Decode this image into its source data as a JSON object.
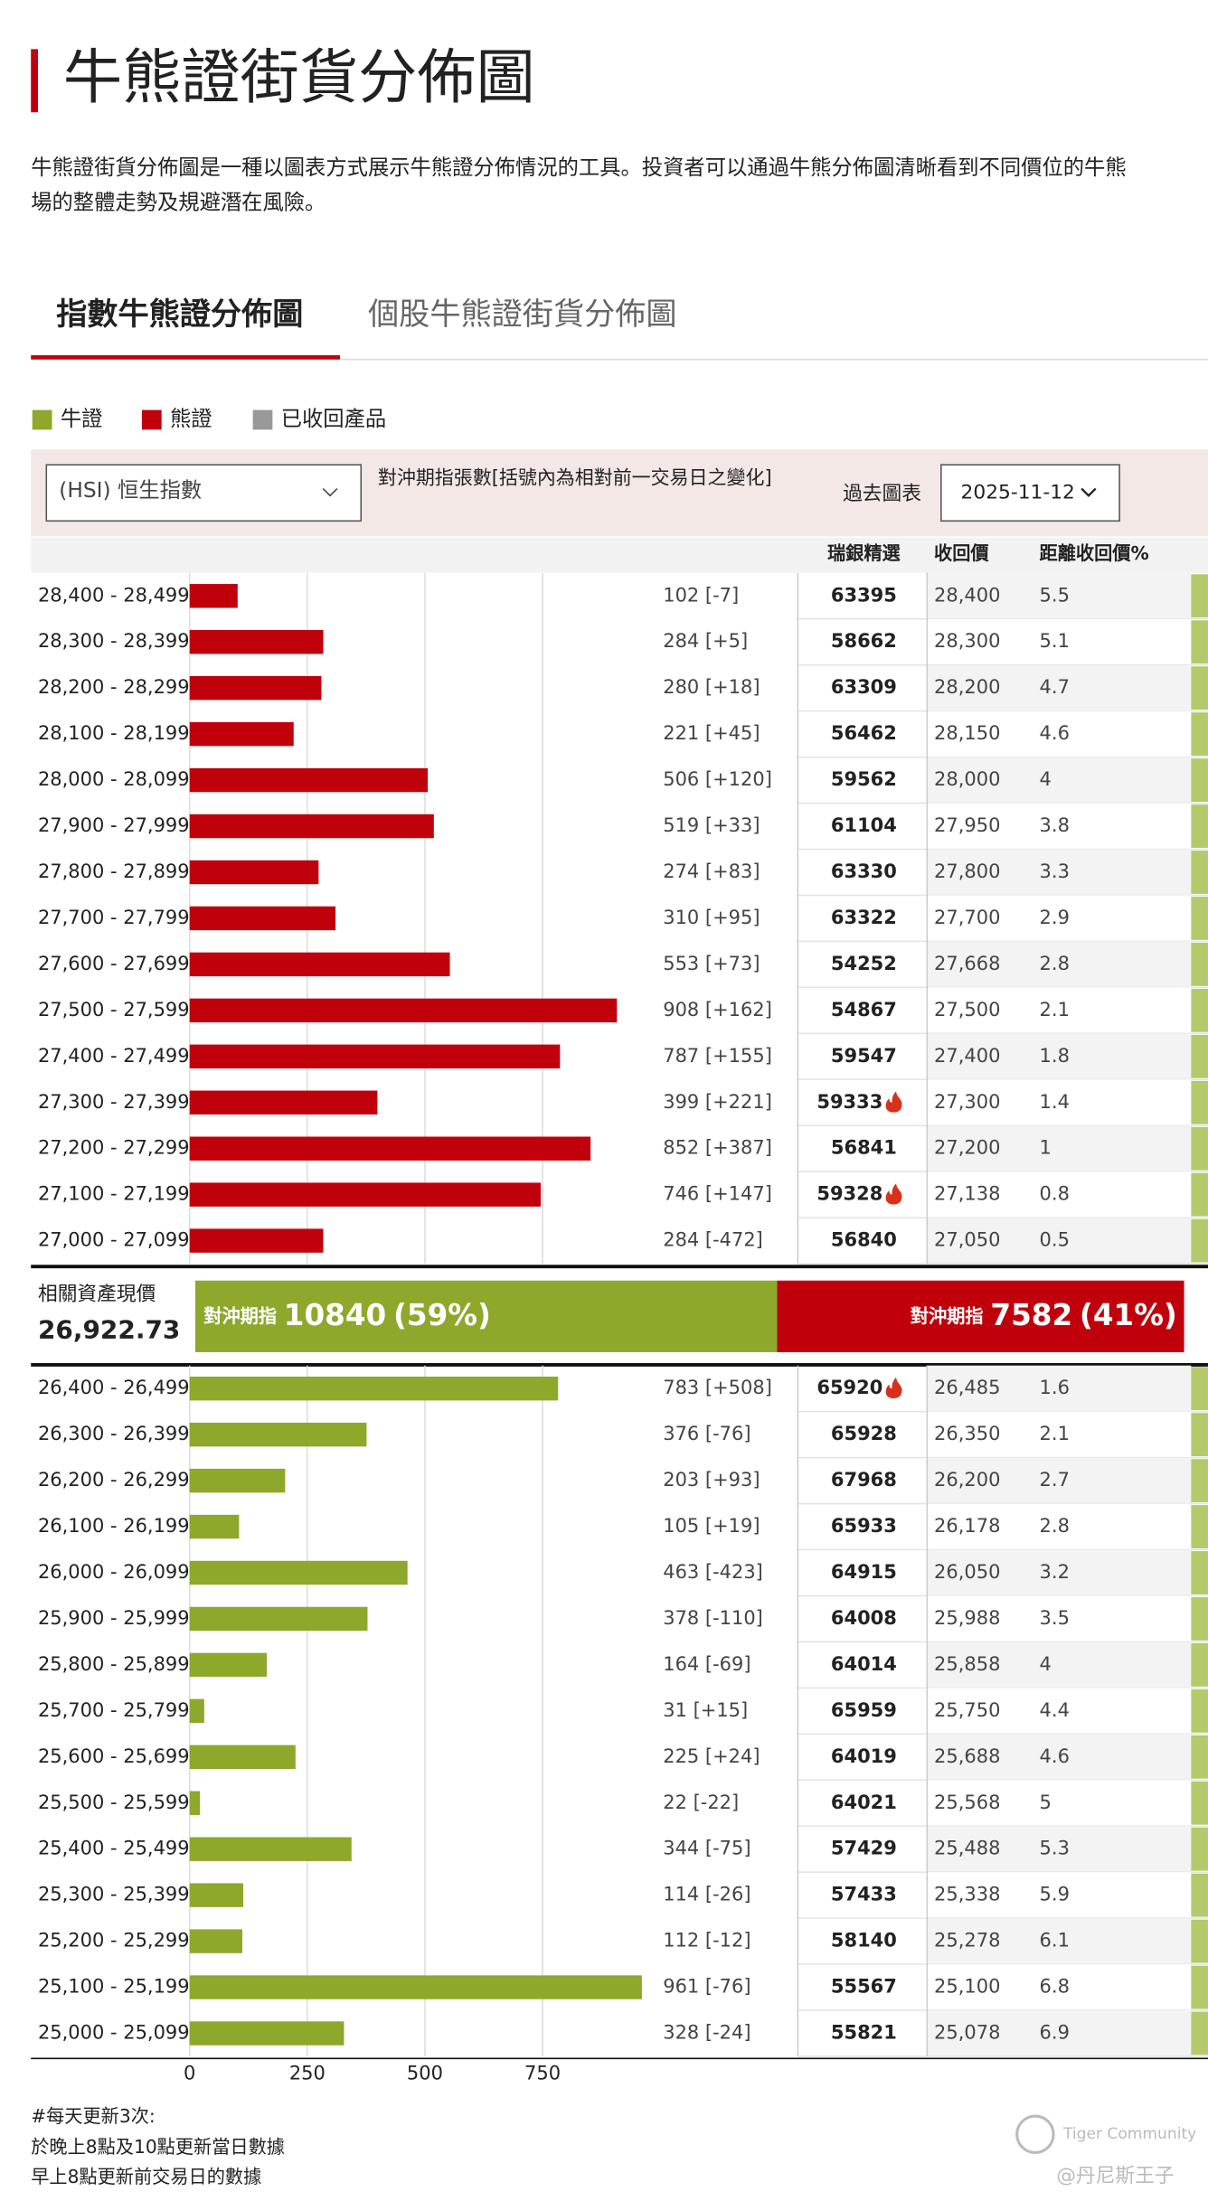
{
  "header": {
    "title": "牛熊證街貨分佈圖",
    "description": [
      "牛熊證街貨分佈圖是一種以圖表方式展示牛熊證分佈情況的工具。投資者可以通過牛熊分佈圖清晰看到不同價位的牛熊",
      "場的整體走勢及規避潛在風險。"
    ]
  },
  "tabs": [
    "指數牛熊證分佈圖",
    "個股牛熊證街貨分佈圖"
  ],
  "legend": [
    {
      "name": "牛證",
      "color": "#8da82b"
    },
    {
      "name": "熊證",
      "color": "#c0000b"
    },
    {
      "name": "已收回產品",
      "color": "#999999"
    }
  ],
  "controls": {
    "index_select": "(HSI) 恒生指數",
    "note": "對沖期指張數[括號內為相對前一交易日之變化]",
    "history_label": "過去圖表",
    "date": "2025-11-12"
  },
  "columns": [
    "瑞銀精選",
    "收回價",
    "距離收回價%"
  ],
  "summary": {
    "spot_label": "相關資產現價",
    "spot": "26,922.73",
    "hedge_label": "對沖期指",
    "bull_count": 10840,
    "bull_pct_label": "(59%)",
    "bear_count": 7582,
    "bear_pct_label": "(41%)"
  },
  "chart_data": [
    {
      "type": "bar",
      "name": "熊證",
      "color": "#c0000b",
      "xlim": [
        0,
        985
      ],
      "categories": [
        "28,400 - 28,499",
        "28,300 - 28,399",
        "28,200 - 28,299",
        "28,100 - 28,199",
        "28,000 - 28,099",
        "27,900 - 27,999",
        "27,800 - 27,899",
        "27,700 - 27,799",
        "27,600 - 27,699",
        "27,500 - 27,599",
        "27,400 - 27,499",
        "27,300 - 27,399",
        "27,200 - 27,299",
        "27,100 - 27,199",
        "27,000 - 27,099"
      ],
      "values": [
        102,
        284,
        280,
        221,
        506,
        519,
        274,
        310,
        553,
        908,
        787,
        399,
        852,
        746,
        284
      ],
      "value_labels": [
        "102 [-7]",
        "284 [+5]",
        "280 [+18]",
        "221 [+45]",
        "506 [+120]",
        "519 [+33]",
        "274 [+83]",
        "310 [+95]",
        "553 [+73]",
        "908 [+162]",
        "787 [+155]",
        "399 [+221]",
        "852 [+387]",
        "746 [+147]",
        "284 [-472]"
      ],
      "picks": [
        63395,
        58662,
        63309,
        56462,
        59562,
        61104,
        63330,
        63322,
        54252,
        54867,
        59547,
        59333,
        56841,
        59328,
        56840
      ],
      "hot": [
        false,
        false,
        false,
        false,
        false,
        false,
        false,
        false,
        false,
        false,
        false,
        true,
        false,
        true,
        false
      ],
      "call_prices": [
        "28,400",
        "28,300",
        "28,200",
        "28,150",
        "28,000",
        "27,950",
        "27,800",
        "27,700",
        "27,668",
        "27,500",
        "27,400",
        "27,300",
        "27,200",
        "27,138",
        "27,050"
      ],
      "distances": [
        5.5,
        5.1,
        4.7,
        4.6,
        4,
        3.8,
        3.3,
        2.9,
        2.8,
        2.1,
        1.8,
        1.4,
        1,
        0.8,
        0.5
      ]
    },
    {
      "type": "bar",
      "name": "牛證",
      "color": "#8da82b",
      "xlim": [
        0,
        985
      ],
      "xticks": [
        0,
        250,
        500,
        750
      ],
      "categories": [
        "26,400 - 26,499",
        "26,300 - 26,399",
        "26,200 - 26,299",
        "26,100 - 26,199",
        "26,000 - 26,099",
        "25,900 - 25,999",
        "25,800 - 25,899",
        "25,700 - 25,799",
        "25,600 - 25,699",
        "25,500 - 25,599",
        "25,400 - 25,499",
        "25,300 - 25,399",
        "25,200 - 25,299",
        "25,100 - 25,199",
        "25,000 - 25,099"
      ],
      "values": [
        783,
        376,
        203,
        105,
        463,
        378,
        164,
        31,
        225,
        22,
        344,
        114,
        112,
        961,
        328
      ],
      "value_labels": [
        "783 [+508]",
        "376 [-76]",
        "203 [+93]",
        "105 [+19]",
        "463 [-423]",
        "378 [-110]",
        "164 [-69]",
        "31 [+15]",
        "225 [+24]",
        "22 [-22]",
        "344 [-75]",
        "114 [-26]",
        "112 [-12]",
        "961 [-76]",
        "328 [-24]"
      ],
      "picks": [
        65920,
        65928,
        67968,
        65933,
        64915,
        64008,
        64014,
        65959,
        64019,
        64021,
        57429,
        57433,
        58140,
        55567,
        55821
      ],
      "hot": [
        true,
        false,
        false,
        false,
        false,
        false,
        false,
        false,
        false,
        false,
        false,
        false,
        false,
        false,
        false
      ],
      "call_prices": [
        "26,485",
        "26,350",
        "26,200",
        "26,178",
        "26,050",
        "25,988",
        "25,858",
        "25,750",
        "25,688",
        "25,568",
        "25,488",
        "25,338",
        "25,278",
        "25,100",
        "25,078"
      ],
      "distances": [
        1.6,
        2.1,
        2.7,
        2.8,
        3.2,
        3.5,
        4,
        4.4,
        4.6,
        5,
        5.3,
        5.9,
        6.1,
        6.8,
        6.9
      ]
    }
  ],
  "footer": [
    "#每天更新3次:",
    "於晚上8點及10點更新當日數據",
    "早上8點更新前交易日的數據"
  ],
  "watermark": [
    "Tiger Community",
    "@丹尼斯王子"
  ]
}
